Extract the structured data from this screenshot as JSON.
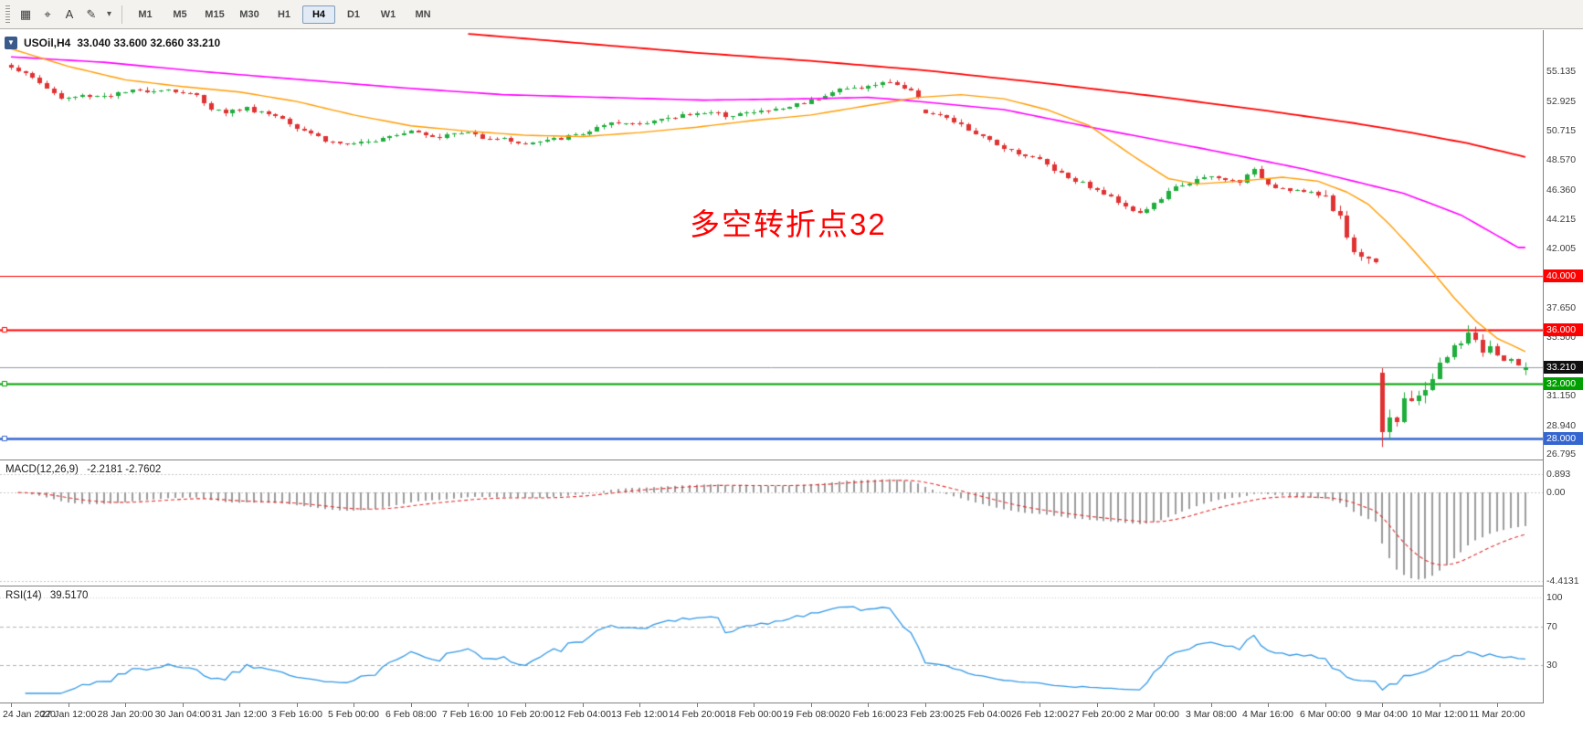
{
  "toolbar": {
    "icons": [
      {
        "name": "chart-window-icon",
        "glyph": "▦"
      },
      {
        "name": "crosshair-icon",
        "glyph": "⌖"
      },
      {
        "name": "text-tool-icon",
        "glyph": "A"
      },
      {
        "name": "draw-tools-icon",
        "glyph": "✎"
      },
      {
        "name": "dropdown-arrow-icon",
        "glyph": "▾",
        "dd": true
      }
    ],
    "timeframes": [
      "M1",
      "M5",
      "M15",
      "M30",
      "H1",
      "H4",
      "D1",
      "W1",
      "MN"
    ],
    "active_timeframe": "H4"
  },
  "chart": {
    "symbol_period": "USOil,H4",
    "ohlc_text": "33.040 33.600 32.660 33.210",
    "collapse_glyph": "▼",
    "annotation": {
      "text": "多空转折点32",
      "color": "#ff0000"
    }
  },
  "macd_panel": {
    "name": "MACD(12,26,9)",
    "values": "-2.2181 -2.7602",
    "axis_labels": [
      {
        "value": 0.893,
        "text": "0.893"
      },
      {
        "value": 0,
        "text": "0.00"
      },
      {
        "value": -4.4131,
        "text": "-4.4131"
      }
    ],
    "histogram_color": "#9c9c9c",
    "signal_color": "#e03030"
  },
  "rsi_panel": {
    "name": "RSI(14)",
    "value": "39.5170",
    "axis_labels": [
      {
        "value": 100,
        "text": "100"
      },
      {
        "value": 70,
        "text": "70"
      },
      {
        "value": 30,
        "text": "30"
      }
    ],
    "levels": [
      70,
      30
    ],
    "line_color": "#3399e6",
    "level_color": "#b4b4b4"
  },
  "chart_data": {
    "type": "candlestick",
    "title": "USOil,H4 33.040 33.600 32.660 33.210",
    "symbol": "USOil",
    "timeframe": "H4",
    "bars_total": 216,
    "last_bar": 212,
    "candle_colors": {
      "up": "#1fae3c",
      "down": "#e03232"
    },
    "price_axis": {
      "visible_range": [
        26.5,
        57.97
      ],
      "labels": [
        [
          55.135,
          "55.135"
        ],
        [
          52.925,
          "52.925"
        ],
        [
          50.715,
          "50.715"
        ],
        [
          48.57,
          "48.570"
        ],
        [
          46.36,
          "46.360"
        ],
        [
          44.215,
          "44.215"
        ],
        [
          42.005,
          "42.005"
        ],
        [
          37.65,
          "37.650"
        ],
        [
          35.5,
          "35.500"
        ],
        [
          31.15,
          "31.150"
        ],
        [
          28.94,
          "28.940"
        ],
        [
          26.795,
          "26.795"
        ]
      ]
    },
    "levels": [
      {
        "price": 40.0,
        "label": "40.000",
        "color": "#ff0000",
        "width": 1.2,
        "handle": false
      },
      {
        "price": 36.0,
        "label": "36.000",
        "color": "#ff0000",
        "width": 2,
        "handle": true
      },
      {
        "price": 32.0,
        "label": "32.000",
        "color": "#00a000",
        "width": 2,
        "handle": true
      },
      {
        "price": 28.0,
        "label": "28.000",
        "color": "#3565cf",
        "width": 2.4,
        "handle": true
      }
    ],
    "current": {
      "price": 33.21,
      "label": "33.210",
      "line_color": "#8f9aa8",
      "badge_color": "#101010"
    },
    "last_candle": {
      "open": 33.04,
      "high": 33.6,
      "low": 32.66,
      "close": 33.21
    },
    "close_anchors": [
      [
        0,
        55.5
      ],
      [
        2,
        54.9
      ],
      [
        4,
        54.3
      ],
      [
        6,
        53.5
      ],
      [
        7,
        53.1
      ],
      [
        10,
        53.3
      ],
      [
        14,
        53.4
      ],
      [
        18,
        53.7
      ],
      [
        22,
        53.8
      ],
      [
        26,
        53.3
      ],
      [
        28,
        52.4
      ],
      [
        30,
        52.1
      ],
      [
        33,
        52.4
      ],
      [
        36,
        52.0
      ],
      [
        38,
        51.7
      ],
      [
        40,
        51.0
      ],
      [
        42,
        50.6
      ],
      [
        44,
        50.0
      ],
      [
        46,
        49.8
      ],
      [
        48,
        49.7
      ],
      [
        50,
        49.9
      ],
      [
        52,
        50.3
      ],
      [
        56,
        50.8
      ],
      [
        58,
        50.5
      ],
      [
        60,
        50.3
      ],
      [
        62,
        50.5
      ],
      [
        64,
        50.6
      ],
      [
        66,
        50.3
      ],
      [
        68,
        50.2
      ],
      [
        70,
        50.0
      ],
      [
        72,
        49.7
      ],
      [
        74,
        49.9
      ],
      [
        76,
        50.1
      ],
      [
        78,
        50.3
      ],
      [
        80,
        50.5
      ],
      [
        82,
        50.9
      ],
      [
        84,
        51.2
      ],
      [
        88,
        51.3
      ],
      [
        90,
        51.5
      ],
      [
        92,
        51.6
      ],
      [
        94,
        51.9
      ],
      [
        96,
        52.1
      ],
      [
        98,
        52.0
      ],
      [
        100,
        51.9
      ],
      [
        104,
        52.1
      ],
      [
        108,
        52.4
      ],
      [
        112,
        53.0
      ],
      [
        114,
        53.4
      ],
      [
        116,
        53.8
      ],
      [
        120,
        54.0
      ],
      [
        123,
        54.4
      ],
      [
        125,
        53.9
      ],
      [
        127,
        53.3
      ],
      [
        128,
        52.1
      ],
      [
        130,
        51.8
      ],
      [
        132,
        51.4
      ],
      [
        134,
        50.8
      ],
      [
        136,
        50.2
      ],
      [
        138,
        49.7
      ],
      [
        140,
        49.3
      ],
      [
        142,
        48.9
      ],
      [
        144,
        48.6
      ],
      [
        146,
        47.9
      ],
      [
        148,
        47.3
      ],
      [
        150,
        46.9
      ],
      [
        152,
        46.3
      ],
      [
        154,
        45.8
      ],
      [
        156,
        45.2
      ],
      [
        158,
        44.6
      ],
      [
        160,
        45.3
      ],
      [
        162,
        46.2
      ],
      [
        164,
        46.8
      ],
      [
        166,
        47.1
      ],
      [
        168,
        47.3
      ],
      [
        170,
        47.1
      ],
      [
        172,
        47.0
      ],
      [
        174,
        47.8
      ],
      [
        176,
        46.8
      ],
      [
        178,
        46.5
      ],
      [
        180,
        46.3
      ],
      [
        182,
        46.1
      ],
      [
        184,
        45.9
      ],
      [
        186,
        44.2
      ],
      [
        188,
        41.8
      ],
      [
        190,
        41.2
      ],
      [
        191,
        41.3
      ],
      [
        192,
        28.6
      ],
      [
        193,
        29.8
      ],
      [
        194,
        29.3
      ],
      [
        195,
        30.8
      ],
      [
        196,
        30.4
      ],
      [
        197,
        31.2
      ],
      [
        198,
        31.8
      ],
      [
        199,
        32.5
      ],
      [
        200,
        33.3
      ],
      [
        201,
        34.0
      ],
      [
        202,
        34.6
      ],
      [
        203,
        35.2
      ],
      [
        204,
        35.9
      ],
      [
        205,
        35.1
      ],
      [
        206,
        34.5
      ],
      [
        207,
        34.8
      ],
      [
        208,
        34.1
      ],
      [
        209,
        33.6
      ],
      [
        210,
        33.9
      ],
      [
        211,
        33.4
      ],
      [
        212,
        33.21
      ]
    ],
    "gap_opens": {
      "128": 52.3,
      "192": 32.87
    },
    "noise_zones": [
      {
        "from": 0,
        "to": 183,
        "amp": 0.15,
        "wick": 0.22
      },
      {
        "from": 184,
        "to": 191,
        "amp": 0.3,
        "wick": 0.45
      },
      {
        "from": 192,
        "to": 207,
        "amp": 0.4,
        "wick": 0.6
      },
      {
        "from": 208,
        "to": 215,
        "amp": 0.15,
        "wick": 0.25
      }
    ],
    "spikes": [
      {
        "bar": 192,
        "low": 27.34
      },
      {
        "bar": 204,
        "high": 36.35
      }
    ],
    "moving_averages": [
      {
        "name": "ma-slow",
        "color": "#ff0000",
        "width": 1.8,
        "anchors": [
          [
            64,
            57.9
          ],
          [
            80,
            57.2
          ],
          [
            96,
            56.5
          ],
          [
            112,
            55.9
          ],
          [
            128,
            55.2
          ],
          [
            144,
            54.3
          ],
          [
            160,
            53.3
          ],
          [
            176,
            52.2
          ],
          [
            188,
            51.3
          ],
          [
            196,
            50.6
          ],
          [
            204,
            49.8
          ],
          [
            212,
            48.8
          ]
        ]
      },
      {
        "name": "ma-medium",
        "color": "#ff00ff",
        "width": 1.6,
        "anchors": [
          [
            0,
            56.2
          ],
          [
            13,
            55.8
          ],
          [
            27,
            55.1
          ],
          [
            41,
            54.5
          ],
          [
            55,
            53.9
          ],
          [
            69,
            53.4
          ],
          [
            83,
            53.2
          ],
          [
            97,
            53.0
          ],
          [
            111,
            53.1
          ],
          [
            120,
            53.2
          ],
          [
            125,
            53.0
          ],
          [
            139,
            52.3
          ],
          [
            153,
            50.8
          ],
          [
            167,
            49.4
          ],
          [
            181,
            47.9
          ],
          [
            195,
            46.1
          ],
          [
            203,
            44.5
          ],
          [
            211,
            42.1
          ]
        ]
      },
      {
        "name": "ma-fast",
        "color": "#ff9c00",
        "width": 1.4,
        "anchors": [
          [
            0,
            56.8
          ],
          [
            8,
            55.5
          ],
          [
            16,
            54.5
          ],
          [
            24,
            54.0
          ],
          [
            32,
            53.6
          ],
          [
            40,
            52.9
          ],
          [
            48,
            51.9
          ],
          [
            56,
            51.1
          ],
          [
            64,
            50.7
          ],
          [
            72,
            50.4
          ],
          [
            80,
            50.3
          ],
          [
            88,
            50.6
          ],
          [
            96,
            51.0
          ],
          [
            104,
            51.5
          ],
          [
            112,
            51.9
          ],
          [
            120,
            52.6
          ],
          [
            127,
            53.2
          ],
          [
            133,
            53.4
          ],
          [
            139,
            53.1
          ],
          [
            145,
            52.3
          ],
          [
            151,
            51.1
          ],
          [
            157,
            48.9
          ],
          [
            162,
            47.2
          ],
          [
            166,
            46.8
          ],
          [
            172,
            47.0
          ],
          [
            178,
            47.3
          ],
          [
            183,
            47.0
          ],
          [
            187,
            46.2
          ],
          [
            190,
            45.3
          ],
          [
            193,
            43.8
          ],
          [
            196,
            42.1
          ],
          [
            199,
            40.3
          ],
          [
            202,
            38.4
          ],
          [
            205,
            36.7
          ],
          [
            208,
            35.4
          ],
          [
            212,
            34.4
          ]
        ]
      }
    ],
    "time_labels": [
      [
        0,
        "24 Jan 2020"
      ],
      [
        8,
        "27 Jan 12:00"
      ],
      [
        16,
        "28 Jan 20:00"
      ],
      [
        24,
        "30 Jan 04:00"
      ],
      [
        32,
        "31 Jan 12:00"
      ],
      [
        40,
        "3 Feb 16:00"
      ],
      [
        48,
        "5 Feb 00:00"
      ],
      [
        56,
        "6 Feb 08:00"
      ],
      [
        64,
        "7 Feb 16:00"
      ],
      [
        72,
        "10 Feb 20:00"
      ],
      [
        80,
        "12 Feb 04:00"
      ],
      [
        88,
        "13 Feb 12:00"
      ],
      [
        96,
        "14 Feb 20:00"
      ],
      [
        104,
        "18 Feb 00:00"
      ],
      [
        112,
        "19 Feb 08:00"
      ],
      [
        120,
        "20 Feb 16:00"
      ],
      [
        128,
        "23 Feb 23:00"
      ],
      [
        136,
        "25 Feb 04:00"
      ],
      [
        144,
        "26 Feb 12:00"
      ],
      [
        152,
        "27 Feb 20:00"
      ],
      [
        160,
        "2 Mar 00:00"
      ],
      [
        168,
        "3 Mar 08:00"
      ],
      [
        176,
        "4 Mar 16:00"
      ],
      [
        184,
        "6 Mar 00:00"
      ],
      [
        192,
        "9 Mar 04:00"
      ],
      [
        200,
        "10 Mar 12:00"
      ],
      [
        208,
        "11 Mar 20:00"
      ]
    ]
  }
}
